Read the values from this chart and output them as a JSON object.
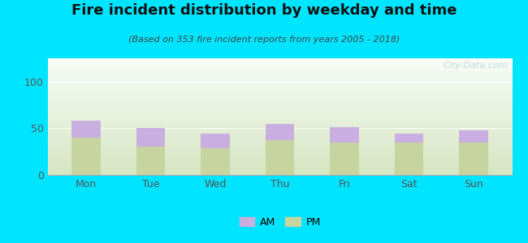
{
  "title": "Fire incident distribution by weekday and time",
  "subtitle": "(Based on 353 fire incident reports from years 2005 - 2018)",
  "categories": [
    "Mon",
    "Tue",
    "Wed",
    "Thu",
    "Fri",
    "Sat",
    "Sun"
  ],
  "pm_values": [
    40,
    30,
    29,
    37,
    35,
    35,
    35
  ],
  "am_values": [
    18,
    20,
    15,
    18,
    16,
    9,
    13
  ],
  "am_color": "#c9aee0",
  "pm_color": "#c8d4a0",
  "background_color": "#00e5ff",
  "ylim": [
    0,
    125
  ],
  "yticks": [
    0,
    50,
    100
  ],
  "bar_width": 0.45,
  "legend_am": "AM",
  "legend_pm": "PM",
  "watermark": "City-Data.com",
  "title_fontsize": 13,
  "subtitle_fontsize": 8,
  "tick_fontsize": 9,
  "legend_fontsize": 9,
  "title_color": "#111111",
  "subtitle_color": "#444444",
  "tick_color": "#555555",
  "watermark_color": "#b8d4d4",
  "spine_color": "#aaaaaa",
  "grid_color": "#ffffff"
}
